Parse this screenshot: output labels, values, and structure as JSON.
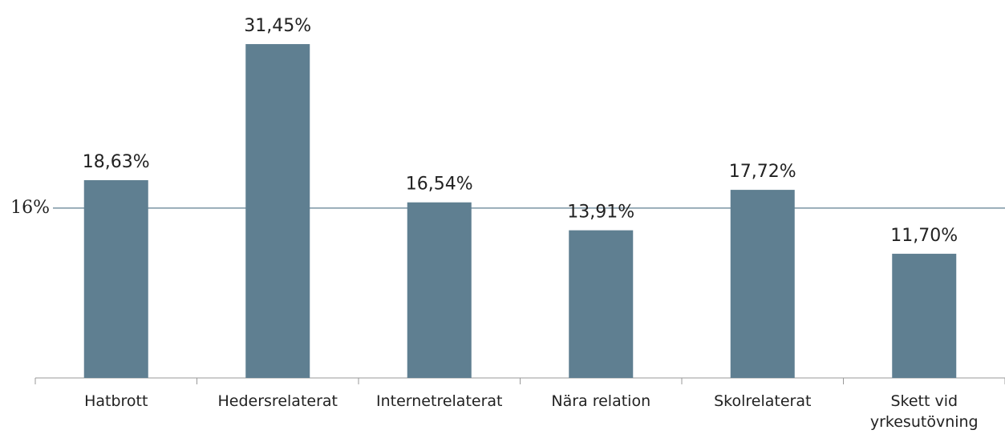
{
  "chart_data": {
    "type": "bar",
    "categories": [
      "Hatbrott",
      "Hedersrelaterat",
      "Internetrelaterat",
      "Nära relation",
      "Skolrelaterat",
      "Skett vid yrkesutövning"
    ],
    "values": [
      18.63,
      31.45,
      16.54,
      13.91,
      17.72,
      11.7
    ],
    "value_labels": [
      "18,63%",
      "31,45%",
      "16,54%",
      "13,91%",
      "17,72%",
      "11,70%"
    ],
    "color": "#5f7f91",
    "ylim": [
      0,
      35
    ],
    "yticks": [
      {
        "value": 16,
        "label": "16%"
      }
    ],
    "grid": true
  }
}
